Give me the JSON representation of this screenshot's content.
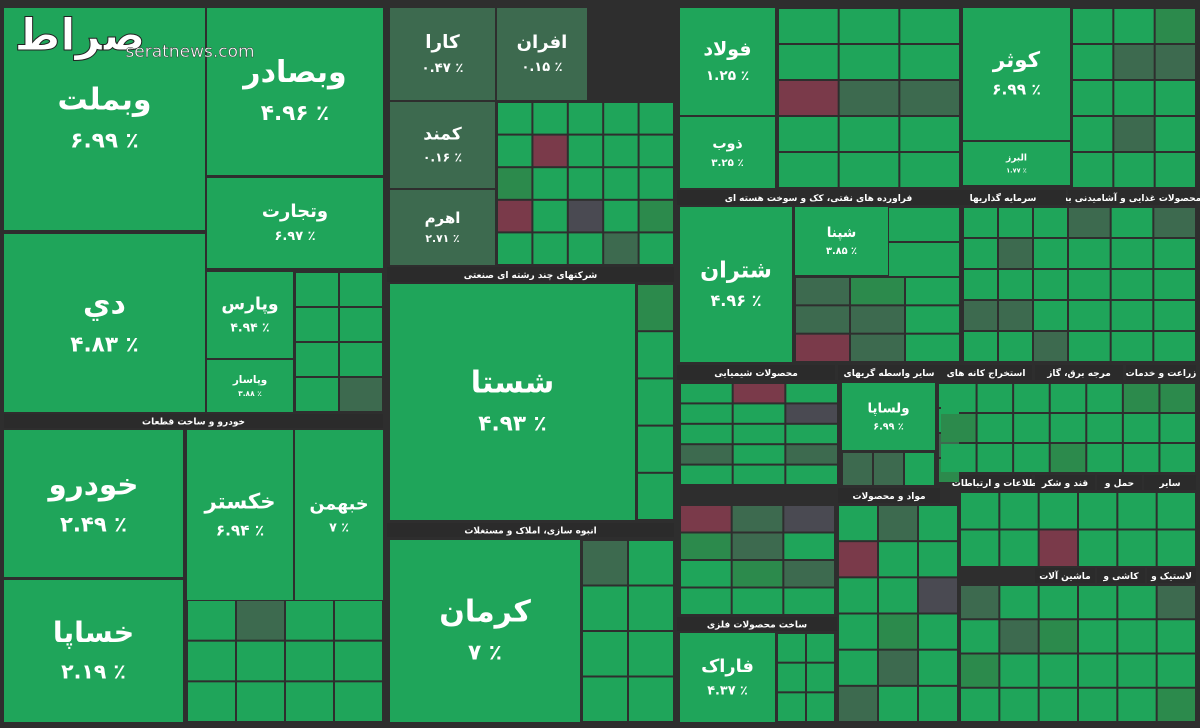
{
  "watermark": {
    "logo": "صراط",
    "site": "seratnews.com"
  },
  "sectors": [
    {
      "tiles": [
        {
          "name": "وبملت",
          "change": "۶.۹۹ ٪"
        },
        {
          "name": "دي",
          "change": "۴.۸۳ ٪"
        },
        {
          "name": "وبصادر",
          "change": "۴.۹۶ ٪"
        },
        {
          "name": "وتجارت",
          "change": "۶.۹۷ ٪"
        },
        {
          "name": "وپارس",
          "change": "۴.۹۴ ٪"
        },
        {
          "name": "وپاسار",
          "change": "۳.۸۸ ٪"
        }
      ]
    },
    {
      "title": "خودرو و ساخت قطعات",
      "tiles": [
        {
          "name": "خودرو",
          "change": "۲.۴۹ ٪"
        },
        {
          "name": "خساپا",
          "change": "۲.۱۹ ٪"
        },
        {
          "name": "خكستر",
          "change": "۶.۹۴ ٪"
        },
        {
          "name": "خبهمن",
          "change": "۷ ٪"
        }
      ]
    },
    {
      "tiles": [
        {
          "name": "کارا",
          "change": "۰.۴۷ ٪"
        },
        {
          "name": "افران",
          "change": "۰.۱۵ ٪"
        },
        {
          "name": "کمند",
          "change": "۰.۱۶ ٪"
        },
        {
          "name": "اهرم",
          "change": "۲.۷۱ ٪"
        }
      ]
    },
    {
      "title": "شرکتهای چند رشته ای صنعتی",
      "tiles": [
        {
          "name": "شستا",
          "change": "۴.۹۳ ٪"
        }
      ]
    },
    {
      "title": "انبوه سازی، املاک و مستغلات",
      "tiles": [
        {
          "name": "کرمان",
          "change": "۷ ٪"
        }
      ]
    },
    {
      "tiles": [
        {
          "name": "فولاد",
          "change": "۱.۲۵ ٪"
        },
        {
          "name": "ذوب",
          "change": "۳.۲۵ ٪"
        }
      ]
    },
    {
      "title": "فراورده های نفتی، کک و سوخت هسته ای",
      "tiles": [
        {
          "name": "شتران",
          "change": "۴.۹۶ ٪"
        },
        {
          "name": "شپنا",
          "change": "۳.۸۵ ٪"
        }
      ]
    },
    {
      "title": "محصولات شیمیایی"
    },
    {
      "title": "سایر واسطه گریهای",
      "tiles": [
        {
          "name": "ولساپا",
          "change": "۶.۹۹ ٪"
        }
      ]
    },
    {
      "tiles": [
        {
          "name": "کوثر",
          "change": "۶.۹۹ ٪"
        },
        {
          "name": "البرز",
          "change": "۱.۷۷ ٪"
        }
      ]
    },
    {
      "title": "محصولات غذایی و آشامیدنی به"
    },
    {
      "title": "سرمایه گذاریها"
    },
    {
      "title": "ساخت محصولات فلزی",
      "tiles": [
        {
          "name": "فاراک",
          "change": "۴.۳۷ ٪"
        }
      ]
    },
    {
      "title": "استخراج کانه های"
    },
    {
      "title": "مرجه برق، گاز"
    },
    {
      "title": "زراعت و خدمات"
    },
    {
      "title": "مواد و محصولات"
    },
    {
      "title": "اطلاعات و ارتباطات"
    },
    {
      "title": "قند و شکر"
    },
    {
      "title": "حمل و"
    },
    {
      "title": "سایر"
    },
    {
      "title": "ماشین آلات"
    },
    {
      "title": "کاشی و"
    },
    {
      "title": "لاستیک و"
    }
  ]
}
